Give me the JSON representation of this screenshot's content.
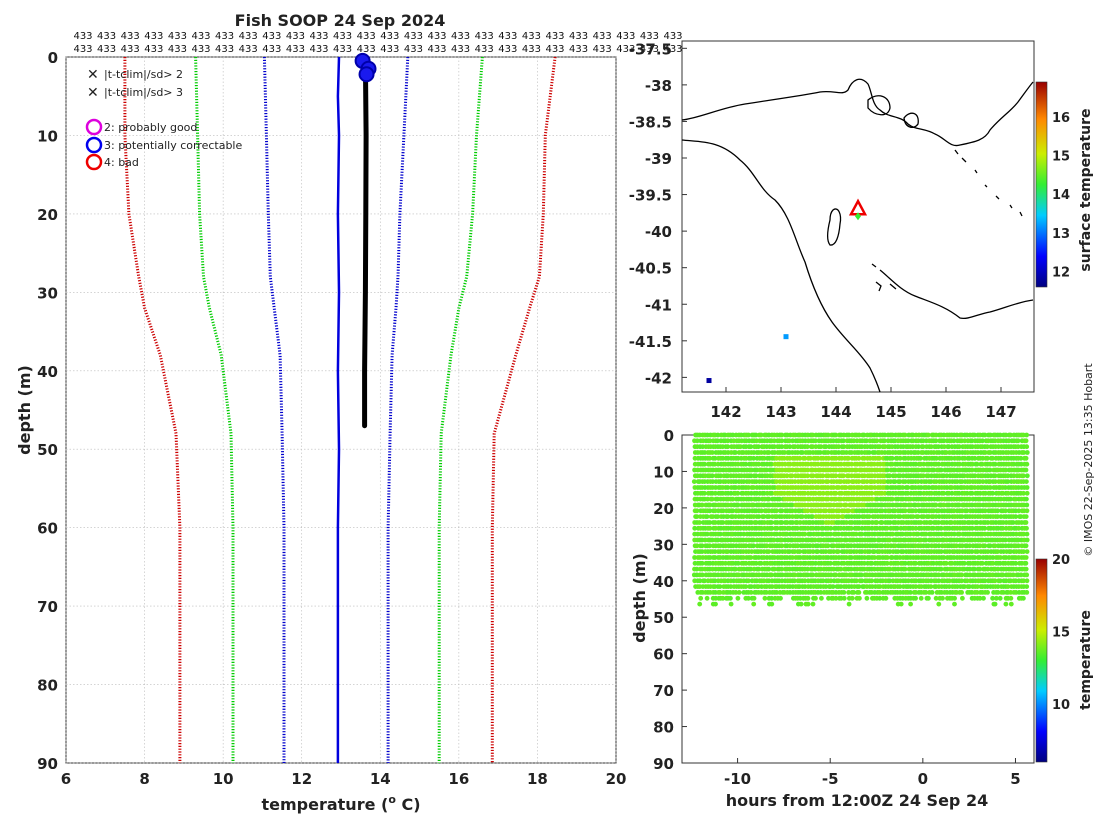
{
  "title": "Fish SOOP 24 Sep 2024",
  "credit": "© IMOS 22-Sep-2025 13:35 Hobart",
  "count_label": "433",
  "chart_data": [
    {
      "type": "line",
      "id": "profile",
      "xlabel": "temperature (",
      "xlabel_sup": "o",
      "xlabel_tail": " C)",
      "ylabel": "depth (m)",
      "xlim": [
        6,
        20
      ],
      "ylim": [
        0,
        90
      ],
      "xticks": [
        6,
        8,
        10,
        12,
        14,
        16,
        18,
        20
      ],
      "yticks": [
        0,
        10,
        20,
        30,
        40,
        50,
        60,
        70,
        80,
        90
      ],
      "legend_flags": [
        {
          "marker": "x",
          "color": "#00dd00",
          "label": "|t-tclim|/sd> 2"
        },
        {
          "marker": "x",
          "color": "#ee0000",
          "label": "|t-tclim|/sd> 3"
        }
      ],
      "legend_qc": [
        {
          "color": "#dd00dd",
          "label": "2: probably good"
        },
        {
          "color": "#0000ee",
          "label": "3: potentially correctable"
        },
        {
          "color": "#ee0000",
          "label": "4: bad"
        }
      ],
      "series": [
        {
          "name": "clim -3sd",
          "color": "#cc0000",
          "style": "dotted",
          "x": [
            7.5,
            7.5,
            7.6,
            7.85,
            8.0,
            8.4,
            8.8,
            8.9,
            8.9
          ],
          "depth": [
            0,
            10,
            20,
            28,
            32,
            38,
            48,
            60,
            90
          ]
        },
        {
          "name": "clim -2sd",
          "color": "#00cc00",
          "style": "dotted",
          "x": [
            9.3,
            9.35,
            9.4,
            9.5,
            9.65,
            9.95,
            10.2,
            10.25,
            10.25
          ],
          "depth": [
            0,
            10,
            20,
            28,
            32,
            38,
            48,
            60,
            90
          ]
        },
        {
          "name": "clim -1sd",
          "color": "#0000cc",
          "style": "dotted",
          "x": [
            11.05,
            11.1,
            11.15,
            11.2,
            11.3,
            11.45,
            11.5,
            11.55,
            11.55
          ],
          "depth": [
            0,
            10,
            20,
            28,
            32,
            38,
            48,
            60,
            90
          ]
        },
        {
          "name": "clim +1sd",
          "color": "#0000cc",
          "style": "dotted",
          "x": [
            14.7,
            14.6,
            14.5,
            14.45,
            14.4,
            14.3,
            14.25,
            14.2,
            14.2
          ],
          "depth": [
            0,
            10,
            20,
            28,
            32,
            38,
            48,
            60,
            90
          ]
        },
        {
          "name": "clim +2sd",
          "color": "#00cc00",
          "style": "dotted",
          "x": [
            16.6,
            16.45,
            16.35,
            16.2,
            16.0,
            15.8,
            15.55,
            15.5,
            15.5
          ],
          "depth": [
            0,
            10,
            20,
            28,
            32,
            38,
            48,
            60,
            90
          ]
        },
        {
          "name": "clim +3sd",
          "color": "#cc0000",
          "style": "dotted",
          "x": [
            18.45,
            18.2,
            18.15,
            18.05,
            17.8,
            17.45,
            16.9,
            16.85,
            16.85
          ],
          "depth": [
            0,
            10,
            20,
            28,
            32,
            38,
            48,
            60,
            90
          ]
        },
        {
          "name": "mean 0-2",
          "color": "#0000dd",
          "style": "solid",
          "x": [
            12.95,
            12.92,
            12.95,
            12.92,
            12.95,
            12.92,
            12.95,
            12.92,
            12.92
          ],
          "depth": [
            0,
            5,
            10,
            20,
            30,
            40,
            50,
            60,
            90
          ]
        },
        {
          "name": "observed",
          "color": "#000000",
          "style": "thick",
          "x": [
            13.62,
            13.64,
            13.63,
            13.62,
            13.6,
            13.6
          ],
          "depth": [
            0.5,
            10,
            20,
            30,
            40,
            47
          ]
        }
      ],
      "qc_points": [
        {
          "x": 13.55,
          "depth": 0.5
        },
        {
          "x": 13.7,
          "depth": 1.5
        },
        {
          "x": 13.65,
          "depth": 2.2
        }
      ]
    },
    {
      "type": "map",
      "id": "map",
      "xlim": [
        141.2,
        147.6
      ],
      "ylim": [
        -42.2,
        -37.4
      ],
      "xticks": [
        142,
        143,
        144,
        145,
        146,
        147
      ],
      "yticks": [
        -37.5,
        -38,
        -38.5,
        -39,
        -39.5,
        -40,
        -40.5,
        -41,
        -41.5,
        -42
      ],
      "colorbar_label": "surface temperature",
      "colorbar_range": [
        11.6,
        16.9
      ],
      "colorbar_ticks": [
        12,
        13,
        14,
        15,
        16
      ],
      "marker": {
        "lon": 144.4,
        "lat": -39.7,
        "color": "#ee0000"
      },
      "obs_points": [
        {
          "lon": 143.1,
          "lat": -41.45,
          "value": 13.2
        },
        {
          "lon": 141.7,
          "lat": -42.05,
          "value": 11.8
        }
      ]
    },
    {
      "type": "scatter",
      "id": "timeseries",
      "xlabel": "hours from 12:00Z 24 Sep 24",
      "ylabel": "depth (m)",
      "xlim": [
        -13,
        6
      ],
      "ylim": [
        0,
        90
      ],
      "xticks": [
        -10,
        -5,
        0,
        5
      ],
      "yticks": [
        0,
        10,
        20,
        30,
        40,
        50,
        60,
        70,
        80,
        90
      ],
      "colorbar_label": "temperature",
      "colorbar_range": [
        6,
        20
      ],
      "colorbar_ticks": [
        10,
        15,
        20
      ],
      "time_range": [
        -12.3,
        5.6
      ],
      "max_depth": 45,
      "base_temperature": 13.6,
      "warm_patch": {
        "t_from": -8,
        "t_to": -2,
        "depth_from": 5,
        "depth_to": 25,
        "temperature": 14.2
      }
    }
  ]
}
